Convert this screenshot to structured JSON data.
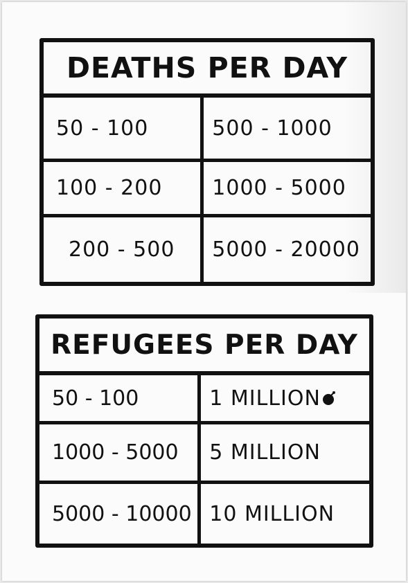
{
  "deaths_table": {
    "title": "DEATHS PER DAY",
    "rows": [
      {
        "left": "50 - 100",
        "right": "500 - 1000"
      },
      {
        "left": "100 - 200",
        "right": "1000 - 5000"
      },
      {
        "left": "200 - 500",
        "right": "5000 - 20000"
      }
    ]
  },
  "refugees_table": {
    "title": "REFUGEES PER DAY",
    "rows": [
      {
        "left": "50 - 100",
        "right": "1 MILLION",
        "icon": "bomb-icon"
      },
      {
        "left": "1000 - 5000",
        "right": "5 MILLION"
      },
      {
        "left": "5000 - 10000",
        "right": "10 MILLION"
      }
    ]
  }
}
